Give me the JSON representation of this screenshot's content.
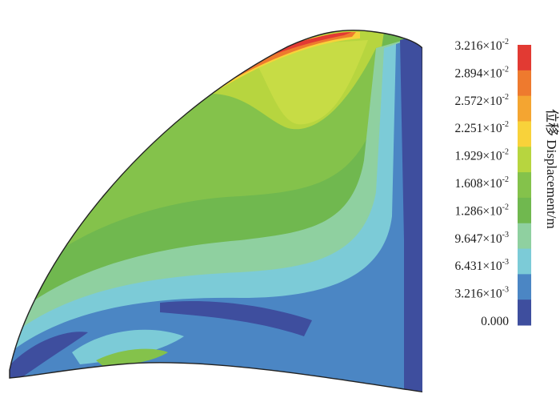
{
  "colorbar": {
    "title": "位移 Displacement/m",
    "labels": [
      {
        "mantissa": "3.216",
        "exponent": "-2"
      },
      {
        "mantissa": "2.894",
        "exponent": "-2"
      },
      {
        "mantissa": "2.572",
        "exponent": "-2"
      },
      {
        "mantissa": "2.251",
        "exponent": "-2"
      },
      {
        "mantissa": "1.929",
        "exponent": "-2"
      },
      {
        "mantissa": "1.608",
        "exponent": "-2"
      },
      {
        "mantissa": "1.286",
        "exponent": "-2"
      },
      {
        "mantissa": "9.647",
        "exponent": "-3"
      },
      {
        "mantissa": "6.431",
        "exponent": "-3"
      },
      {
        "mantissa": "3.216",
        "exponent": "-3"
      },
      {
        "mantissa": "0.000",
        "exponent": ""
      }
    ],
    "colors_top_to_bottom": [
      "#e23a33",
      "#ee7a2e",
      "#f4a531",
      "#f8d23a",
      "#b7d53f",
      "#84c24b",
      "#70b84f",
      "#8fd0a0",
      "#7ccbd7",
      "#4b86c4",
      "#3e4e9e"
    ]
  }
}
